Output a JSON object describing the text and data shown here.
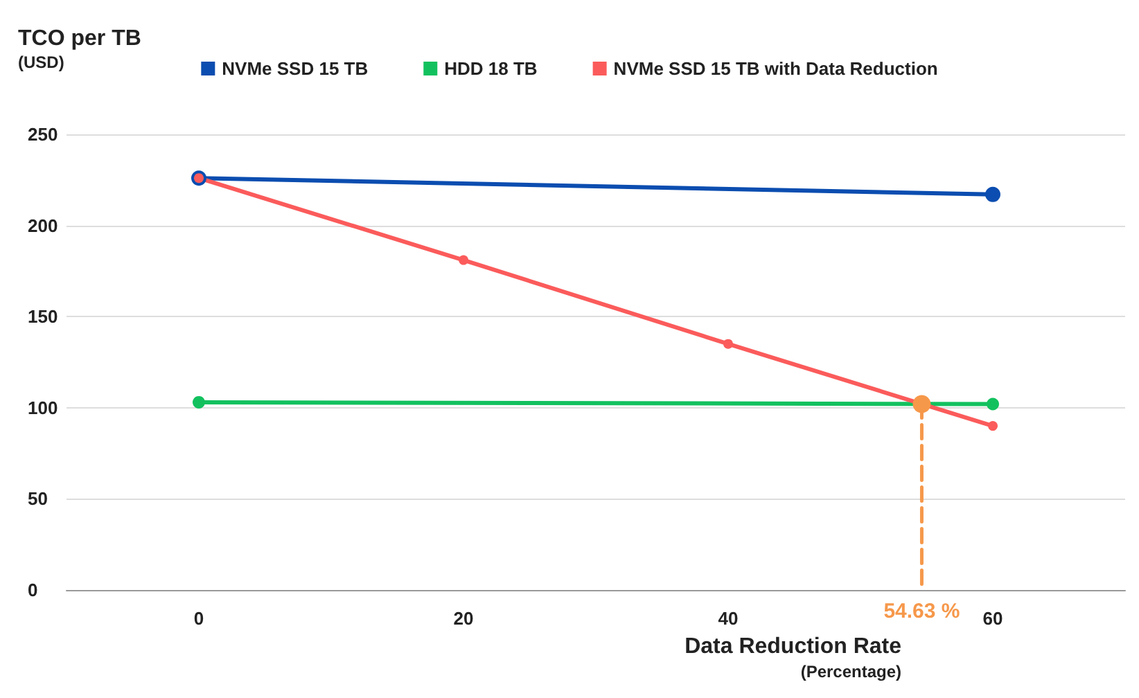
{
  "chart_data": {
    "type": "line",
    "ylabel": "TCO per TB\n(USD)",
    "xlabel": "Data Reduction Rate\n(Percentage)",
    "xlim": [
      -10,
      70
    ],
    "xticks": [
      0,
      20,
      40,
      60
    ],
    "ylim": [
      0,
      250
    ],
    "yticks": [
      0,
      50,
      100,
      150,
      200,
      250
    ],
    "grid": "y",
    "legend": "top",
    "marker": "circle",
    "series": [
      {
        "name": "NVMe SSD 15 TB",
        "color": "#0b4db0",
        "x": [
          0,
          60
        ],
        "values": [
          226,
          217
        ]
      },
      {
        "name": "HDD 18 TB",
        "color": "#12c15e",
        "x": [
          0,
          60
        ],
        "values": [
          103,
          102
        ]
      },
      {
        "name": "NVMe SSD 15 TB with Data Reduction",
        "color": "#fb5b5b",
        "x": [
          0,
          20,
          40,
          60
        ],
        "values": [
          226,
          181,
          135,
          90
        ]
      },
      {
        "color": "#f6984a",
        "x": [
          54.63,
          54.63
        ],
        "values": [
          102,
          0
        ],
        "line_style": "dashed"
      }
    ],
    "annotations": [
      {
        "text": "54.63 %",
        "x": 54.63,
        "y": 0
      }
    ]
  }
}
